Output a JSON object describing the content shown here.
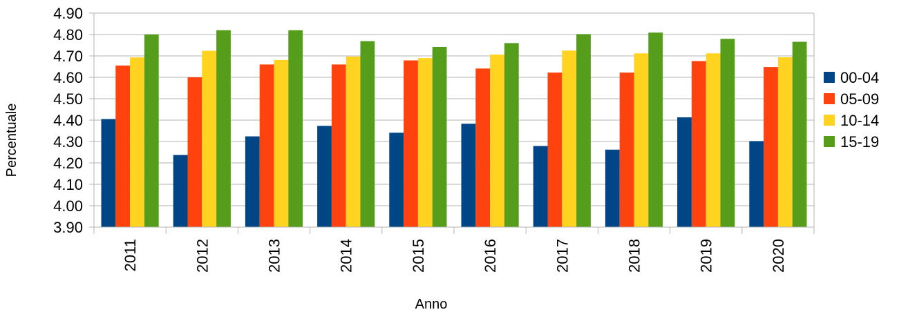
{
  "chart_data": {
    "type": "bar",
    "title": "",
    "xlabel": "Anno",
    "ylabel": "Percentuale",
    "ylim": [
      3.9,
      4.9
    ],
    "yticks": [
      "3.90",
      "4.00",
      "4.10",
      "4.20",
      "4.30",
      "4.40",
      "4.50",
      "4.60",
      "4.70",
      "4.80",
      "4.90"
    ],
    "grid": true,
    "legend_position": "right",
    "categories": [
      "2011",
      "2012",
      "2013",
      "2014",
      "2015",
      "2016",
      "2017",
      "2018",
      "2019",
      "2020"
    ],
    "series": [
      {
        "name": "00-04",
        "color": "#004586",
        "values": [
          4.405,
          4.237,
          4.324,
          4.373,
          4.341,
          4.383,
          4.279,
          4.262,
          4.413,
          4.302
        ]
      },
      {
        "name": "05-09",
        "color": "#ff420e",
        "values": [
          4.655,
          4.6,
          4.66,
          4.66,
          4.679,
          4.641,
          4.622,
          4.622,
          4.676,
          4.648
        ]
      },
      {
        "name": "10-14",
        "color": "#ffd320",
        "values": [
          4.693,
          4.724,
          4.681,
          4.697,
          4.69,
          4.706,
          4.725,
          4.712,
          4.712,
          4.694
        ]
      },
      {
        "name": "15-19",
        "color": "#579d1c",
        "values": [
          4.8,
          4.82,
          4.82,
          4.769,
          4.742,
          4.76,
          4.802,
          4.809,
          4.78,
          4.766
        ]
      }
    ]
  }
}
